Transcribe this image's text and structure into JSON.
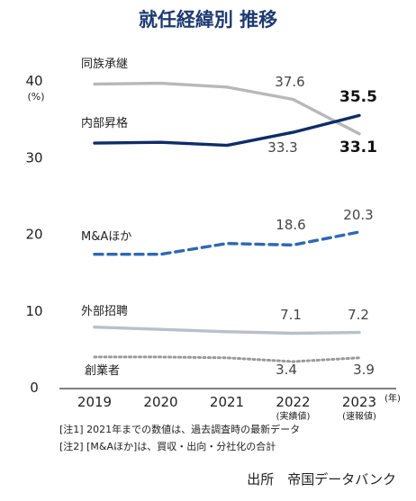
{
  "chart_data": {
    "type": "line",
    "title": "就任経緯別 推移",
    "ylabel": "(%)",
    "x_unit": "(年)",
    "ylim": [
      0,
      40
    ],
    "yticks": [
      0,
      10,
      20,
      30,
      40
    ],
    "categories": [
      "2019",
      "2020",
      "2021",
      "2022",
      "2023"
    ],
    "category_sublabels": [
      "",
      "",
      "",
      "(実績値)",
      "(速報値)"
    ],
    "grid": false,
    "series": [
      {
        "name": "同族承継",
        "color": "#b8b8b8",
        "style": "solid",
        "values": [
          39.6,
          39.7,
          39.2,
          37.6,
          33.1
        ],
        "data_labels": {
          "3": "37.6",
          "4": "33.1"
        },
        "bold_label_index": 4
      },
      {
        "name": "内部昇格",
        "color": "#0e2d68",
        "style": "solid",
        "values": [
          31.9,
          32.0,
          31.6,
          33.3,
          35.5
        ],
        "data_labels": {
          "3": "33.3",
          "4": "35.5"
        },
        "bold_label_index": 4
      },
      {
        "name": "M&Aほか",
        "color": "#2e68b4",
        "style": "dashed",
        "values": [
          17.4,
          17.4,
          18.8,
          18.6,
          20.3
        ],
        "data_labels": {
          "3": "18.6",
          "4": "20.3"
        }
      },
      {
        "name": "外部招聘",
        "color": "#b7c0cc",
        "style": "solid",
        "values": [
          7.9,
          7.6,
          7.3,
          7.1,
          7.2
        ],
        "data_labels": {
          "3": "7.1",
          "4": "7.2"
        }
      },
      {
        "name": "創業者",
        "color": "#9a9a9a",
        "style": "dotted",
        "values": [
          4.0,
          4.0,
          3.9,
          3.4,
          3.9
        ],
        "data_labels": {
          "3": "3.4",
          "4": "3.9"
        }
      }
    ]
  },
  "notes": [
    "[注1] 2021年までの数値は、過去調査時の最新データ",
    "[注2] [M&Aほか]は、買収・出向・分社化の合計"
  ],
  "source": "出所　帝国データバンク"
}
